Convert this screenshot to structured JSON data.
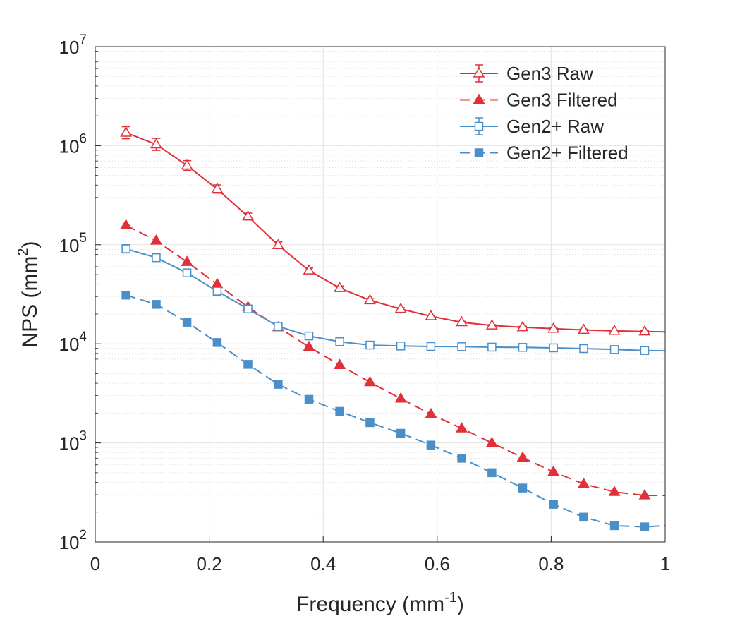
{
  "chart_data": {
    "type": "line",
    "title": "",
    "xlabel": "Frequency (mm",
    "xlabel_sup": "-1",
    "xlabel_suffix": ")",
    "ylabel": "NPS (mm",
    "ylabel_sup": "2",
    "ylabel_suffix": ")",
    "xlim": [
      0,
      1
    ],
    "ylim": [
      100,
      10000000
    ],
    "yscale": "log",
    "grid": true,
    "minor_grid": true,
    "legend_position": "top-right",
    "x_ticks": [
      {
        "value": 0,
        "label": "0"
      },
      {
        "value": 0.2,
        "label": "0.2"
      },
      {
        "value": 0.4,
        "label": "0.4"
      },
      {
        "value": 0.6,
        "label": "0.6"
      },
      {
        "value": 0.8,
        "label": "0.8"
      },
      {
        "value": 1,
        "label": "1"
      }
    ],
    "y_ticks": [
      {
        "value": 100,
        "base": "10",
        "exp": "2"
      },
      {
        "value": 1000,
        "base": "10",
        "exp": "3"
      },
      {
        "value": 10000,
        "base": "10",
        "exp": "4"
      },
      {
        "value": 100000,
        "base": "10",
        "exp": "5"
      },
      {
        "value": 1000000,
        "base": "10",
        "exp": "6"
      },
      {
        "value": 10000000,
        "base": "10",
        "exp": "7"
      }
    ],
    "x": [
      0.054,
      0.107,
      0.161,
      0.214,
      0.268,
      0.321,
      0.375,
      0.429,
      0.482,
      0.536,
      0.589,
      0.643,
      0.696,
      0.75,
      0.804,
      0.857,
      0.911,
      0.964,
      1.0
    ],
    "series": [
      {
        "name": "Gen3 Raw",
        "color": "#e0303a",
        "line": "solid",
        "marker": "triangle-open",
        "error_bars": true,
        "values": [
          1350000,
          1030000,
          630000,
          365000,
          193000,
          99000,
          55000,
          36500,
          27500,
          22500,
          19000,
          16500,
          15300,
          14700,
          14200,
          13800,
          13500,
          13300,
          13200
        ],
        "error": [
          0.15,
          0.15,
          0.12,
          0.1,
          0.08,
          0.08,
          0.06,
          0.05,
          0.04,
          0.03,
          0.02,
          0.02,
          0.02,
          0.02,
          0.02,
          0.02,
          0.02,
          0.02,
          0
        ]
      },
      {
        "name": "Gen3 Filtered",
        "color": "#e0303a",
        "line": "dashed",
        "marker": "triangle-filled",
        "error_bars": false,
        "values": [
          157000,
          110000,
          67000,
          40000,
          23500,
          14700,
          9300,
          6100,
          4100,
          2800,
          1950,
          1400,
          1000,
          710,
          510,
          385,
          320,
          295,
          295
        ]
      },
      {
        "name": "Gen2+ Raw",
        "color": "#4a8fc8",
        "line": "solid",
        "marker": "square-open",
        "error_bars": true,
        "values": [
          91000,
          74000,
          52000,
          34000,
          22500,
          15000,
          12000,
          10500,
          9700,
          9500,
          9400,
          9350,
          9250,
          9200,
          9100,
          8950,
          8750,
          8550,
          8500
        ],
        "error": [
          0.1,
          0.08,
          0.08,
          0.1,
          0.08,
          0.06,
          0.04,
          0.03,
          0.02,
          0.02,
          0.02,
          0.02,
          0.02,
          0.02,
          0.02,
          0.02,
          0.02,
          0.02,
          0
        ]
      },
      {
        "name": "Gen2+ Filtered",
        "color": "#4a8fc8",
        "line": "dashed",
        "marker": "square-filled",
        "error_bars": false,
        "values": [
          31000,
          25000,
          16500,
          10300,
          6200,
          3900,
          2750,
          2080,
          1600,
          1250,
          950,
          700,
          500,
          350,
          240,
          178,
          146,
          142,
          146
        ]
      }
    ]
  }
}
